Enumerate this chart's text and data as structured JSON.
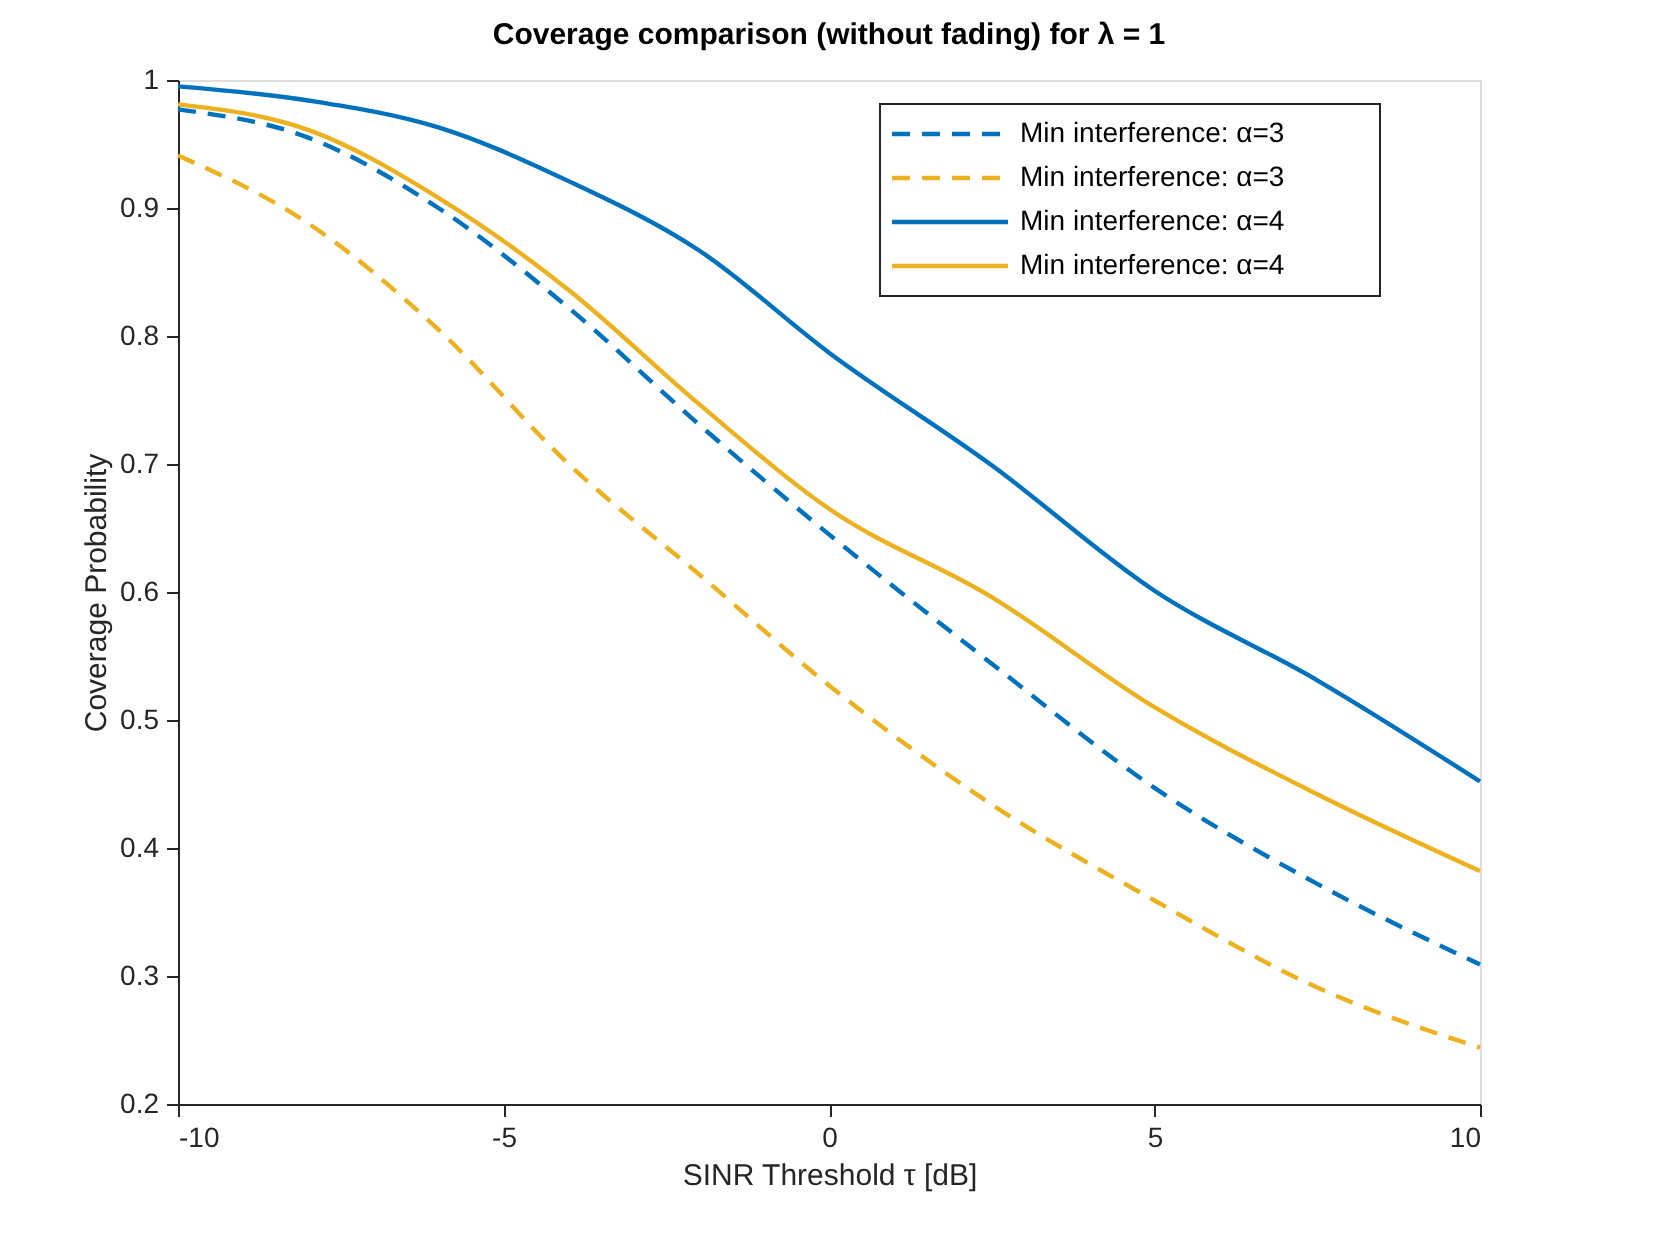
{
  "chart_data": {
    "type": "line",
    "title": "Coverage comparison (without fading) for λ = 1",
    "xlabel": "SINR Threshold τ [dB]",
    "ylabel": "Coverage Probability",
    "x": [
      -10,
      -8,
      -6,
      -4,
      -2,
      0,
      2.5,
      5,
      7.5,
      10
    ],
    "series": [
      {
        "name": "Min interference: α=3",
        "color": "#0072bd",
        "line_style": "dashed",
        "values": [
          0.977,
          0.955,
          0.9,
          0.822,
          0.731,
          0.645,
          0.544,
          0.447,
          0.372,
          0.309
        ]
      },
      {
        "name": "Min interference: α=3",
        "color": "#edb120",
        "line_style": "dashed",
        "values": [
          0.941,
          0.888,
          0.805,
          0.7,
          0.614,
          0.527,
          0.434,
          0.359,
          0.291,
          0.244
        ]
      },
      {
        "name": "Min interference: α=4",
        "color": "#0072bd",
        "line_style": "solid",
        "values": [
          0.995,
          0.984,
          0.963,
          0.921,
          0.867,
          0.787,
          0.699,
          0.601,
          0.531,
          0.452
        ]
      },
      {
        "name": "Min interference: α=4",
        "color": "#edb120",
        "line_style": "solid",
        "values": [
          0.981,
          0.961,
          0.908,
          0.836,
          0.747,
          0.665,
          0.596,
          0.51,
          0.442,
          0.382
        ]
      }
    ],
    "xlim": [
      -10,
      10
    ],
    "xticks": [
      -10,
      -5,
      0,
      5,
      10
    ],
    "ylim": [
      0.2,
      1
    ],
    "yticks": [
      0.2,
      0.3,
      0.4,
      0.5,
      0.6,
      0.7,
      0.8,
      0.9,
      1
    ],
    "grid": false,
    "legend": "top right",
    "marker": "none"
  }
}
